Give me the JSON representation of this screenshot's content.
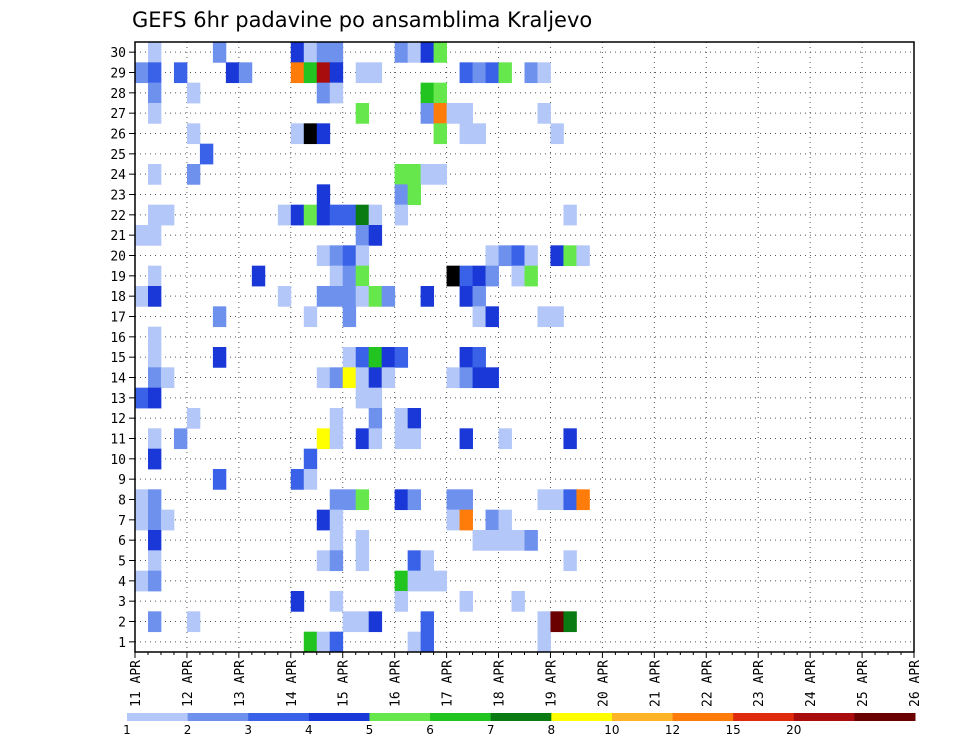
{
  "chart_data": {
    "type": "heatmap",
    "title": "GEFS 6hr padavine po ansamblima Kraljevo",
    "xlabel": "",
    "ylabel": "",
    "x_tick_labels": [
      "11 APR",
      "12 APR",
      "13 APR",
      "14 APR",
      "15 APR",
      "16 APR",
      "17 APR",
      "18 APR",
      "19 APR",
      "20 APR",
      "21 APR",
      "22 APR",
      "23 APR",
      "24 APR",
      "25 APR",
      "26 APR"
    ],
    "xlim": [
      0,
      15
    ],
    "time_steps_per_day": 4,
    "y_tick_labels": [
      "1",
      "2",
      "3",
      "4",
      "5",
      "6",
      "7",
      "8",
      "9",
      "10",
      "11",
      "12",
      "13",
      "14",
      "15",
      "16",
      "17",
      "18",
      "19",
      "20",
      "21",
      "22",
      "23",
      "24",
      "25",
      "26",
      "27",
      "28",
      "29",
      "30"
    ],
    "ylim": [
      0.5,
      30.5
    ],
    "grid": true,
    "legend": {
      "placement": "bottom",
      "thresholds": [
        "1",
        "2",
        "3",
        "4",
        "5",
        "6",
        "7",
        "8",
        "10",
        "12",
        "15",
        "20"
      ],
      "colors": [
        "#b3c8f8",
        "#6e91ee",
        "#3a62e8",
        "#1a38d8",
        "#66e84c",
        "#22c420",
        "#0a7a12",
        "#ffff00",
        "#ffb428",
        "#ff7c0a",
        "#e02a0e",
        "#a80c0c",
        "#6a0000"
      ]
    },
    "cells": [
      [
        30,
        1,
        1
      ],
      [
        30,
        6,
        2
      ],
      [
        30,
        12,
        4
      ],
      [
        30,
        13,
        1
      ],
      [
        30,
        14,
        2
      ],
      [
        30,
        15,
        2
      ],
      [
        30,
        20,
        2
      ],
      [
        30,
        21,
        1
      ],
      [
        30,
        22,
        4
      ],
      [
        30,
        23,
        5
      ],
      [
        29,
        0,
        2
      ],
      [
        29,
        1,
        3
      ],
      [
        29,
        3,
        3
      ],
      [
        29,
        7,
        4
      ],
      [
        29,
        8,
        2
      ],
      [
        29,
        12,
        10
      ],
      [
        29,
        13,
        6
      ],
      [
        29,
        14,
        12
      ],
      [
        29,
        15,
        4
      ],
      [
        29,
        17,
        1
      ],
      [
        29,
        18,
        1
      ],
      [
        29,
        25,
        3
      ],
      [
        29,
        26,
        2
      ],
      [
        29,
        27,
        3
      ],
      [
        29,
        28,
        5
      ],
      [
        29,
        30,
        2
      ],
      [
        29,
        31,
        1
      ],
      [
        28,
        1,
        2
      ],
      [
        28,
        4,
        1
      ],
      [
        28,
        14,
        2
      ],
      [
        28,
        15,
        1
      ],
      [
        28,
        22,
        6
      ],
      [
        28,
        23,
        5
      ],
      [
        27,
        1,
        1
      ],
      [
        27,
        17,
        5
      ],
      [
        27,
        22,
        2
      ],
      [
        27,
        23,
        10
      ],
      [
        27,
        24,
        1
      ],
      [
        27,
        25,
        1
      ],
      [
        27,
        31,
        1
      ],
      [
        26,
        4,
        1
      ],
      [
        26,
        12,
        1
      ],
      [
        26,
        13,
        15
      ],
      [
        26,
        14,
        4
      ],
      [
        26,
        23,
        5
      ],
      [
        26,
        25,
        1
      ],
      [
        26,
        26,
        1
      ],
      [
        26,
        32,
        1
      ],
      [
        25,
        5,
        3
      ],
      [
        24,
        1,
        1
      ],
      [
        24,
        4,
        2
      ],
      [
        24,
        20,
        5
      ],
      [
        24,
        21,
        5
      ],
      [
        24,
        22,
        1
      ],
      [
        24,
        23,
        1
      ],
      [
        23,
        14,
        4
      ],
      [
        23,
        20,
        2
      ],
      [
        23,
        21,
        5
      ],
      [
        22,
        1,
        1
      ],
      [
        22,
        2,
        1
      ],
      [
        22,
        11,
        1
      ],
      [
        22,
        12,
        4
      ],
      [
        22,
        13,
        5
      ],
      [
        22,
        14,
        4
      ],
      [
        22,
        15,
        3
      ],
      [
        22,
        16,
        3
      ],
      [
        22,
        17,
        7
      ],
      [
        22,
        18,
        1
      ],
      [
        22,
        20,
        1
      ],
      [
        22,
        33,
        1
      ],
      [
        21,
        0,
        1
      ],
      [
        21,
        1,
        1
      ],
      [
        21,
        17,
        2
      ],
      [
        21,
        18,
        4
      ],
      [
        20,
        14,
        1
      ],
      [
        20,
        15,
        2
      ],
      [
        20,
        16,
        3
      ],
      [
        20,
        17,
        1
      ],
      [
        20,
        27,
        1
      ],
      [
        20,
        28,
        2
      ],
      [
        20,
        29,
        3
      ],
      [
        20,
        30,
        1
      ],
      [
        20,
        32,
        4
      ],
      [
        20,
        33,
        5
      ],
      [
        20,
        34,
        1
      ],
      [
        19,
        1,
        1
      ],
      [
        19,
        9,
        4
      ],
      [
        19,
        15,
        1
      ],
      [
        19,
        16,
        2
      ],
      [
        19,
        17,
        5
      ],
      [
        19,
        24,
        15
      ],
      [
        19,
        25,
        3
      ],
      [
        19,
        26,
        4
      ],
      [
        19,
        27,
        2
      ],
      [
        19,
        29,
        1
      ],
      [
        19,
        30,
        5
      ],
      [
        18,
        0,
        1
      ],
      [
        18,
        1,
        4
      ],
      [
        18,
        11,
        1
      ],
      [
        18,
        14,
        2
      ],
      [
        18,
        15,
        2
      ],
      [
        18,
        16,
        2
      ],
      [
        18,
        17,
        1
      ],
      [
        18,
        18,
        5
      ],
      [
        18,
        19,
        2
      ],
      [
        18,
        22,
        4
      ],
      [
        18,
        25,
        4
      ],
      [
        18,
        26,
        2
      ],
      [
        17,
        6,
        2
      ],
      [
        17,
        13,
        1
      ],
      [
        17,
        16,
        2
      ],
      [
        17,
        26,
        1
      ],
      [
        17,
        27,
        4
      ],
      [
        17,
        31,
        1
      ],
      [
        17,
        32,
        1
      ],
      [
        16,
        1,
        1
      ],
      [
        15,
        1,
        1
      ],
      [
        15,
        6,
        4
      ],
      [
        15,
        16,
        1
      ],
      [
        15,
        17,
        3
      ],
      [
        15,
        18,
        6
      ],
      [
        15,
        19,
        4
      ],
      [
        15,
        20,
        3
      ],
      [
        15,
        25,
        4
      ],
      [
        15,
        26,
        3
      ],
      [
        14,
        1,
        2
      ],
      [
        14,
        2,
        1
      ],
      [
        14,
        14,
        1
      ],
      [
        14,
        15,
        2
      ],
      [
        14,
        16,
        8
      ],
      [
        14,
        17,
        1
      ],
      [
        14,
        18,
        4
      ],
      [
        14,
        19,
        1
      ],
      [
        14,
        24,
        1
      ],
      [
        14,
        25,
        2
      ],
      [
        14,
        26,
        4
      ],
      [
        14,
        27,
        4
      ],
      [
        13,
        0,
        3
      ],
      [
        13,
        1,
        4
      ],
      [
        13,
        17,
        1
      ],
      [
        13,
        18,
        1
      ],
      [
        12,
        4,
        1
      ],
      [
        12,
        15,
        1
      ],
      [
        12,
        18,
        2
      ],
      [
        12,
        20,
        1
      ],
      [
        12,
        21,
        4
      ],
      [
        11,
        1,
        1
      ],
      [
        11,
        3,
        2
      ],
      [
        11,
        14,
        8
      ],
      [
        11,
        15,
        1
      ],
      [
        11,
        17,
        4
      ],
      [
        11,
        18,
        1
      ],
      [
        11,
        20,
        1
      ],
      [
        11,
        21,
        1
      ],
      [
        11,
        25,
        4
      ],
      [
        11,
        28,
        1
      ],
      [
        11,
        33,
        4
      ],
      [
        10,
        1,
        4
      ],
      [
        10,
        13,
        3
      ],
      [
        9,
        6,
        3
      ],
      [
        9,
        12,
        3
      ],
      [
        9,
        13,
        1
      ],
      [
        8,
        0,
        1
      ],
      [
        8,
        1,
        2
      ],
      [
        8,
        15,
        2
      ],
      [
        8,
        16,
        2
      ],
      [
        8,
        17,
        5
      ],
      [
        8,
        20,
        4
      ],
      [
        8,
        21,
        2
      ],
      [
        8,
        24,
        2
      ],
      [
        8,
        25,
        2
      ],
      [
        8,
        31,
        1
      ],
      [
        8,
        32,
        1
      ],
      [
        8,
        33,
        3
      ],
      [
        8,
        34,
        10
      ],
      [
        7,
        0,
        1
      ],
      [
        7,
        1,
        2
      ],
      [
        7,
        2,
        1
      ],
      [
        7,
        14,
        4
      ],
      [
        7,
        15,
        1
      ],
      [
        7,
        24,
        1
      ],
      [
        7,
        25,
        10
      ],
      [
        7,
        27,
        2
      ],
      [
        7,
        28,
        1
      ],
      [
        6,
        1,
        4
      ],
      [
        6,
        15,
        1
      ],
      [
        6,
        17,
        1
      ],
      [
        6,
        26,
        1
      ],
      [
        6,
        27,
        1
      ],
      [
        6,
        28,
        1
      ],
      [
        6,
        29,
        1
      ],
      [
        6,
        30,
        2
      ],
      [
        5,
        1,
        1
      ],
      [
        5,
        14,
        1
      ],
      [
        5,
        15,
        2
      ],
      [
        5,
        17,
        1
      ],
      [
        5,
        21,
        3
      ],
      [
        5,
        22,
        1
      ],
      [
        5,
        33,
        1
      ],
      [
        4,
        0,
        1
      ],
      [
        4,
        1,
        2
      ],
      [
        4,
        20,
        6
      ],
      [
        4,
        21,
        1
      ],
      [
        4,
        22,
        1
      ],
      [
        4,
        23,
        1
      ],
      [
        3,
        12,
        4
      ],
      [
        3,
        15,
        1
      ],
      [
        3,
        20,
        1
      ],
      [
        3,
        25,
        1
      ],
      [
        3,
        29,
        1
      ],
      [
        2,
        1,
        2
      ],
      [
        2,
        4,
        1
      ],
      [
        2,
        16,
        1
      ],
      [
        2,
        17,
        1
      ],
      [
        2,
        18,
        4
      ],
      [
        2,
        22,
        3
      ],
      [
        2,
        31,
        1
      ],
      [
        2,
        32,
        13
      ],
      [
        2,
        33,
        7
      ],
      [
        1,
        13,
        6
      ],
      [
        1,
        14,
        1
      ],
      [
        1,
        15,
        3
      ],
      [
        1,
        21,
        1
      ],
      [
        1,
        22,
        3
      ],
      [
        1,
        31,
        1
      ]
    ]
  }
}
